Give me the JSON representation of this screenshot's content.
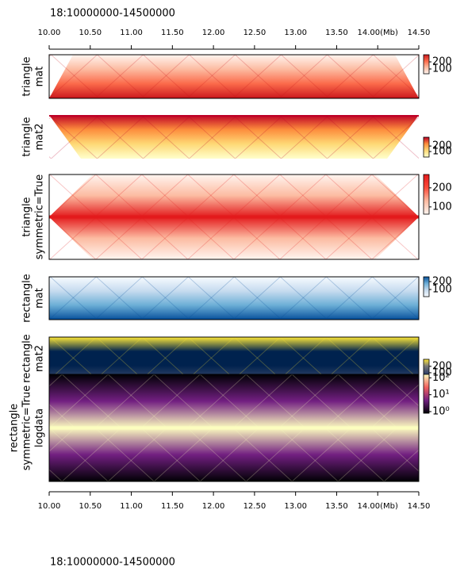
{
  "title": "18:10000000-14500000",
  "footer": "18:10000000-14500000",
  "xaxis": {
    "xlim": [
      10,
      14.5
    ],
    "xticks": [
      {
        "value": 10,
        "label": "10.00"
      },
      {
        "value": 10.5,
        "label": "10.50"
      },
      {
        "value": 11,
        "label": "11.00"
      },
      {
        "value": 11.5,
        "label": "11.50"
      },
      {
        "value": 12,
        "label": "12.00"
      },
      {
        "value": 12.5,
        "label": "12.50"
      },
      {
        "value": 13,
        "label": "13.00"
      },
      {
        "value": 13.5,
        "label": "13.50"
      },
      {
        "value": 14,
        "label": "14.00(Mb)"
      },
      {
        "value": 14.5,
        "label": "14.50"
      }
    ]
  },
  "chart_data": [
    {
      "type": "heatmap",
      "style": "triangle",
      "ylabel": [
        "triangle",
        "mat"
      ],
      "cmap": [
        "#fff5f0",
        "#fcbba1",
        "#fb6a4a",
        "#cb181d"
      ],
      "clim": [
        33,
        300
      ],
      "cticks": [
        100,
        200
      ]
    },
    {
      "type": "heatmap",
      "style": "triangle",
      "flip": true,
      "ylabel": [
        "triangle",
        "mat2"
      ],
      "cmap": [
        "#ffffcc",
        "#fed976",
        "#fd8d3c",
        "#bd0026"
      ],
      "clim": [
        0,
        360
      ],
      "cticks": [
        100,
        200
      ]
    },
    {
      "type": "heatmap",
      "style": "triangle",
      "symmetric": true,
      "ylabel": [
        "triangle",
        "symmetric=True"
      ],
      "cmap": [
        "#fff5f0",
        "#fcbba1",
        "#fb4a3a",
        "#e31a1c"
      ],
      "clim": [
        62,
        270
      ],
      "cticks": [
        100,
        200
      ]
    },
    {
      "type": "heatmap",
      "style": "rectangle",
      "ylabel": [
        "rectangle",
        "mat"
      ],
      "cmap": [
        "#f7fbff",
        "#c6dbef",
        "#6baed6",
        "#08519c"
      ],
      "clim": [
        10,
        260
      ],
      "cticks": [
        100,
        200
      ]
    },
    {
      "type": "heatmap",
      "style": "rectangle",
      "ylabel": [
        "rectangle",
        "mat2"
      ],
      "cmap": [
        "#00224e",
        "#3b496c",
        "#7c7b78",
        "#fee838"
      ],
      "clim": [
        0,
        310
      ],
      "cticks": [
        100,
        200
      ]
    },
    {
      "type": "heatmap",
      "style": "rectangle",
      "symmetric": true,
      "log": true,
      "ylabel": [
        "rectangle",
        "symmetric=True",
        "logdata"
      ],
      "cmap": [
        "#000004",
        "#721f81",
        "#f1605d",
        "#fcfdbf"
      ],
      "clim": [
        0.8,
        160
      ],
      "cticks": [
        {
          "value": 100,
          "label": "10²"
        },
        {
          "value": 10,
          "label": "10¹"
        },
        {
          "value": 1,
          "label": "10⁰"
        }
      ]
    }
  ]
}
